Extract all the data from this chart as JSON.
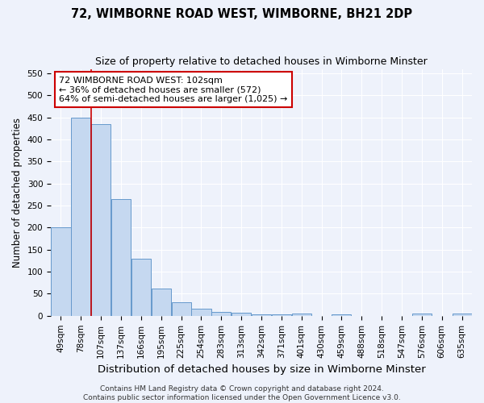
{
  "title": "72, WIMBORNE ROAD WEST, WIMBORNE, BH21 2DP",
  "subtitle": "Size of property relative to detached houses in Wimborne Minster",
  "xlabel": "Distribution of detached houses by size in Wimborne Minster",
  "ylabel": "Number of detached properties",
  "categories": [
    "49sqm",
    "78sqm",
    "107sqm",
    "137sqm",
    "166sqm",
    "195sqm",
    "225sqm",
    "254sqm",
    "283sqm",
    "313sqm",
    "342sqm",
    "371sqm",
    "401sqm",
    "430sqm",
    "459sqm",
    "488sqm",
    "518sqm",
    "547sqm",
    "576sqm",
    "606sqm",
    "635sqm"
  ],
  "values": [
    200,
    450,
    435,
    265,
    130,
    62,
    30,
    16,
    9,
    7,
    3,
    3,
    5,
    0,
    4,
    0,
    0,
    0,
    5,
    0,
    5
  ],
  "bar_color": "#c5d8f0",
  "bar_edge_color": "#6699cc",
  "vline_x_index": 2,
  "vline_color": "#cc0000",
  "annotation_text": "72 WIMBORNE ROAD WEST: 102sqm\n← 36% of detached houses are smaller (572)\n64% of semi-detached houses are larger (1,025) →",
  "annotation_box_color": "#ffffff",
  "annotation_box_edge": "#cc0000",
  "ylim": [
    0,
    560
  ],
  "yticks": [
    0,
    50,
    100,
    150,
    200,
    250,
    300,
    350,
    400,
    450,
    500,
    550
  ],
  "footer": "Contains HM Land Registry data © Crown copyright and database right 2024.\nContains public sector information licensed under the Open Government Licence v3.0.",
  "background_color": "#eef2fb",
  "grid_color": "#ffffff",
  "title_fontsize": 10.5,
  "subtitle_fontsize": 9,
  "xlabel_fontsize": 9.5,
  "ylabel_fontsize": 8.5,
  "tick_fontsize": 7.5,
  "annotation_fontsize": 8,
  "footer_fontsize": 6.5
}
